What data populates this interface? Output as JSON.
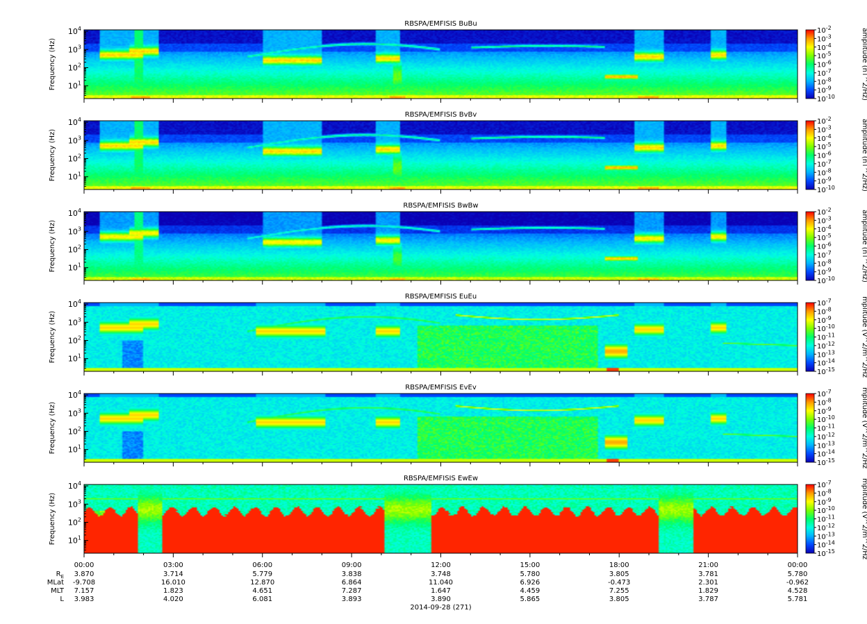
{
  "chart_data": {
    "type": "heatmap",
    "date_label": "2014-09-28 (271)",
    "x_ticks": [
      "00:00",
      "03:00",
      "06:00",
      "09:00",
      "12:00",
      "15:00",
      "18:00",
      "21:00",
      "00:00"
    ],
    "x_range_hours": [
      0,
      24
    ],
    "ylabel": "Frequency (Hz)",
    "y_scale": "log",
    "y_range_hz": [
      2,
      12000
    ],
    "y_tick_values": [
      10,
      100,
      1000,
      10000
    ],
    "colormap": [
      "#0a00b4",
      "#0048ff",
      "#00b4ff",
      "#00ffe0",
      "#00ff6a",
      "#7dff00",
      "#ffff00",
      "#ff9a00",
      "#ff0000"
    ],
    "panels": [
      {
        "title": "RBSPA/EMFISIS  BuBu",
        "kind": "B",
        "cbar_label": "amplitude (nT^2/Hz)",
        "cbar_exp_range": [
          -10,
          -2
        ]
      },
      {
        "title": "RBSPA/EMFISIS  BvBv",
        "kind": "B",
        "cbar_label": "amplitude (nT^2/Hz)",
        "cbar_exp_range": [
          -10,
          -2
        ]
      },
      {
        "title": "RBSPA/EMFISIS  BwBw",
        "kind": "B",
        "cbar_label": "amplitude (nT^2/Hz)",
        "cbar_exp_range": [
          -10,
          -2
        ]
      },
      {
        "title": "RBSPA/EMFISIS  EuEu",
        "kind": "E",
        "cbar_label": "mplitude (V^2/m^2/Hz",
        "cbar_exp_range": [
          -15,
          -7
        ]
      },
      {
        "title": "RBSPA/EMFISIS  EvEv",
        "kind": "E",
        "cbar_label": "mplitude (V^2/m^2/Hz",
        "cbar_exp_range": [
          -15,
          -7
        ]
      },
      {
        "title": "RBSPA/EMFISIS  EwEw",
        "kind": "Ew",
        "cbar_label": "mplitude (V^2/m^2/Hz",
        "cbar_exp_range": [
          -15,
          -7
        ]
      }
    ],
    "ephemeris": {
      "labels": [
        "R",
        "MLat",
        "MLT",
        "L"
      ],
      "re_subscript": "E",
      "rows": [
        [
          "3.870",
          "3.714",
          "5.779",
          "3.838",
          "3.748",
          "5.780",
          "3.805",
          "3.781",
          "5.780"
        ],
        [
          "-9.708",
          "16.010",
          "12.870",
          "6.864",
          "11.040",
          "6.926",
          "-0.473",
          "2.301",
          "-0.962"
        ],
        [
          "7.157",
          "1.823",
          "4.651",
          "7.287",
          "1.647",
          "4.459",
          "7.255",
          "1.829",
          "4.528"
        ],
        [
          "3.983",
          "4.020",
          "6.081",
          "3.893",
          "3.890",
          "5.865",
          "3.805",
          "3.787",
          "5.781"
        ]
      ]
    }
  }
}
